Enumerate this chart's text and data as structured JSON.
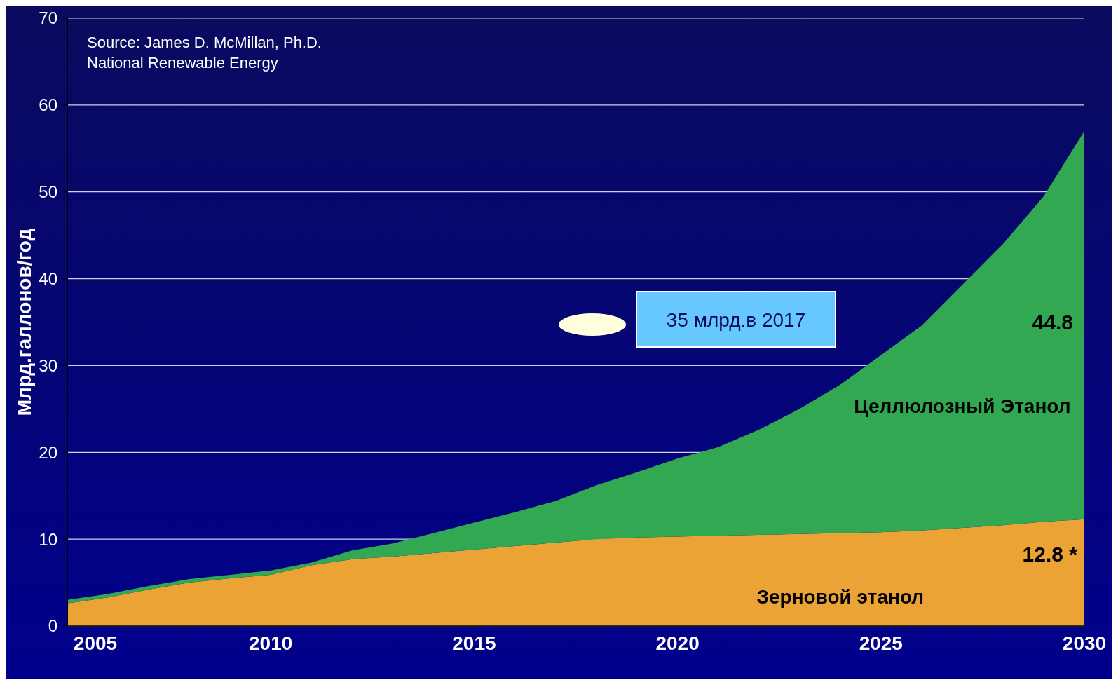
{
  "chart_data": {
    "type": "area",
    "stacked": true,
    "ylabel": "Млрд.галлонов/год",
    "x": [
      2005,
      2006,
      2007,
      2008,
      2009,
      2010,
      2011,
      2012,
      2013,
      2014,
      2015,
      2016,
      2017,
      2018,
      2019,
      2020,
      2021,
      2022,
      2023,
      2024,
      2025,
      2026,
      2027,
      2028,
      2029,
      2030
    ],
    "series": [
      {
        "name": "Зерновой этанол",
        "color": "#eca336",
        "values": [
          2.6,
          3.3,
          4.2,
          5.0,
          5.5,
          5.9,
          7.0,
          7.7,
          8.0,
          8.4,
          8.8,
          9.2,
          9.6,
          10.0,
          10.2,
          10.3,
          10.4,
          10.5,
          10.6,
          10.7,
          10.8,
          11.0,
          11.3,
          11.6,
          12.0,
          12.3
        ]
      },
      {
        "name": "Целлюлозный Этанол",
        "color": "#33a853",
        "values": [
          0.4,
          0.4,
          0.4,
          0.4,
          0.4,
          0.5,
          0.3,
          1.0,
          1.5,
          2.3,
          3.1,
          3.9,
          4.8,
          6.2,
          7.5,
          9.0,
          10.2,
          12.1,
          14.4,
          17.1,
          20.4,
          23.6,
          28.0,
          32.4,
          37.5,
          44.7
        ]
      }
    ],
    "xlim": [
      2005,
      2030
    ],
    "xticks": [
      2005,
      2010,
      2015,
      2020,
      2025,
      2030
    ],
    "ylim": [
      0,
      70
    ],
    "yticks": [
      0,
      10,
      20,
      30,
      40,
      50,
      60,
      70
    ],
    "grid": "y",
    "annotations": [
      "Source: James D. McMillan, Ph.D.\nNational Renewable Energy",
      "35 млрд.в 2017",
      "44.8",
      "12.8 *"
    ]
  }
}
